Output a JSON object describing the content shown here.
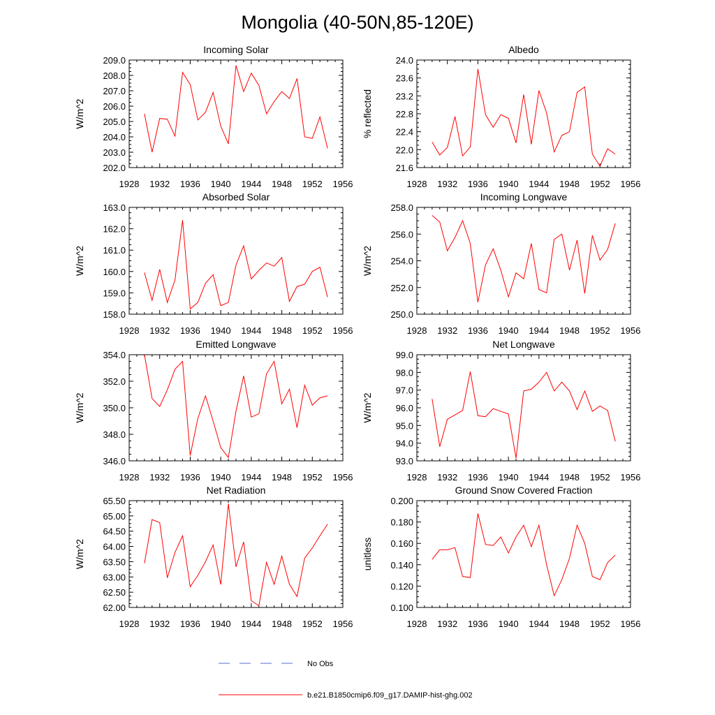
{
  "figure_title": "Mongolia (40-50N,85-120E)",
  "colors": {
    "model": "#ff0000",
    "obs": "#5a6fd0",
    "axis": "#000000"
  },
  "legend": {
    "obs_label": "No Obs",
    "model_label": "b.e21.B1850cmip6.f09_g17.DAMIP-hist-ghg.002"
  },
  "chart_data": [
    {
      "type": "line",
      "title": "Incoming Solar",
      "xlabel": "",
      "ylabel": "W/m^2",
      "xlim": [
        1928,
        1956
      ],
      "ylim": [
        202.0,
        209.0
      ],
      "xticks": [
        "1928",
        "1932",
        "1936",
        "1940",
        "1944",
        "1948",
        "1952",
        "1956"
      ],
      "yticks": [
        "202.0",
        "203.0",
        "204.0",
        "205.0",
        "206.0",
        "207.0",
        "208.0",
        "209.0"
      ],
      "series": [
        {
          "name": "b.e21.B1850cmip6.f09_g17.DAMIP-hist-ghg.002",
          "x": [
            1930,
            1931,
            1932,
            1933,
            1934,
            1935,
            1936,
            1937,
            1938,
            1939,
            1940,
            1941,
            1942,
            1943,
            1944,
            1945,
            1946,
            1947,
            1948,
            1949,
            1950,
            1951,
            1952,
            1953,
            1954
          ],
          "y": [
            205.5,
            203.0,
            205.2,
            205.15,
            204.05,
            208.2,
            207.4,
            205.1,
            205.6,
            206.9,
            204.7,
            203.55,
            208.65,
            206.95,
            208.15,
            207.35,
            205.5,
            206.3,
            206.95,
            206.5,
            207.8,
            204.0,
            203.9,
            205.3,
            203.25
          ]
        }
      ]
    },
    {
      "type": "line",
      "title": "Albedo",
      "xlabel": "",
      "ylabel": "% reflected",
      "xlim": [
        1928,
        1956
      ],
      "ylim": [
        21.6,
        24.0
      ],
      "xticks": [
        "1928",
        "1932",
        "1936",
        "1940",
        "1944",
        "1948",
        "1952",
        "1956"
      ],
      "yticks": [
        "21.6",
        "22.0",
        "22.4",
        "22.8",
        "23.2",
        "23.6",
        "24.0"
      ],
      "series": [
        {
          "name": "b.e21.B1850cmip6.f09_g17.DAMIP-hist-ghg.002",
          "x": [
            1930,
            1931,
            1932,
            1933,
            1934,
            1935,
            1936,
            1937,
            1938,
            1939,
            1940,
            1941,
            1942,
            1943,
            1944,
            1945,
            1946,
            1947,
            1948,
            1949,
            1950,
            1951,
            1952,
            1953,
            1954
          ],
          "y": [
            22.17,
            21.88,
            22.05,
            22.74,
            21.86,
            22.06,
            23.8,
            22.78,
            22.5,
            22.78,
            22.7,
            22.15,
            23.23,
            22.12,
            23.32,
            22.82,
            21.95,
            22.32,
            22.4,
            23.28,
            23.4,
            21.9,
            21.63,
            22.02,
            21.9
          ]
        }
      ]
    },
    {
      "type": "line",
      "title": "Absorbed Solar",
      "xlabel": "",
      "ylabel": "W/m^2",
      "xlim": [
        1928,
        1956
      ],
      "ylim": [
        158.0,
        163.0
      ],
      "xticks": [
        "1928",
        "1932",
        "1936",
        "1940",
        "1944",
        "1948",
        "1952",
        "1956"
      ],
      "yticks": [
        "158.0",
        "159.0",
        "160.0",
        "161.0",
        "162.0",
        "163.0"
      ],
      "series": [
        {
          "name": "b.e21.B1850cmip6.f09_g17.DAMIP-hist-ghg.002",
          "x": [
            1930,
            1931,
            1932,
            1933,
            1934,
            1935,
            1936,
            1937,
            1938,
            1939,
            1940,
            1941,
            1942,
            1943,
            1944,
            1945,
            1946,
            1947,
            1948,
            1949,
            1950,
            1951,
            1952,
            1953,
            1954
          ],
          "y": [
            159.95,
            158.65,
            160.1,
            158.55,
            159.6,
            162.4,
            158.25,
            158.55,
            159.45,
            159.85,
            158.4,
            158.55,
            160.3,
            161.2,
            159.65,
            160.05,
            160.4,
            160.25,
            160.65,
            158.6,
            159.3,
            159.4,
            160.0,
            160.2,
            158.8
          ]
        }
      ]
    },
    {
      "type": "line",
      "title": "Incoming Longwave",
      "xlabel": "",
      "ylabel": "W/m^2",
      "xlim": [
        1928,
        1956
      ],
      "ylim": [
        250.0,
        258.0
      ],
      "xticks": [
        "1928",
        "1932",
        "1936",
        "1940",
        "1944",
        "1948",
        "1952",
        "1956"
      ],
      "yticks": [
        "250.0",
        "252.0",
        "254.0",
        "256.0",
        "258.0"
      ],
      "series": [
        {
          "name": "b.e21.B1850cmip6.f09_g17.DAMIP-hist-ghg.002",
          "x": [
            1930,
            1931,
            1932,
            1933,
            1934,
            1935,
            1936,
            1937,
            1938,
            1939,
            1940,
            1941,
            1942,
            1943,
            1944,
            1945,
            1946,
            1947,
            1948,
            1949,
            1950,
            1951,
            1952,
            1953,
            1954
          ],
          "y": [
            257.4,
            256.9,
            254.75,
            255.75,
            257.0,
            255.3,
            250.9,
            253.7,
            254.9,
            253.3,
            251.3,
            253.1,
            252.65,
            255.3,
            251.85,
            251.6,
            255.6,
            256.0,
            253.3,
            255.55,
            251.55,
            255.9,
            254.05,
            254.85,
            256.8
          ]
        }
      ]
    },
    {
      "type": "line",
      "title": "Emitted Longwave",
      "xlabel": "",
      "ylabel": "W/m^2",
      "xlim": [
        1928,
        1956
      ],
      "ylim": [
        346.0,
        354.0
      ],
      "xticks": [
        "1928",
        "1932",
        "1936",
        "1940",
        "1944",
        "1948",
        "1952",
        "1956"
      ],
      "yticks": [
        "346.0",
        "348.0",
        "350.0",
        "352.0",
        "354.0"
      ],
      "series": [
        {
          "name": "b.e21.B1850cmip6.f09_g17.DAMIP-hist-ghg.002",
          "x": [
            1930,
            1931,
            1932,
            1933,
            1934,
            1935,
            1936,
            1937,
            1938,
            1939,
            1940,
            1941,
            1942,
            1943,
            1944,
            1945,
            1946,
            1947,
            1948,
            1949,
            1950,
            1951,
            1952,
            1953,
            1954
          ],
          "y": [
            354.0,
            350.7,
            350.1,
            351.35,
            352.9,
            353.5,
            346.4,
            349.2,
            350.9,
            349.0,
            347.0,
            346.25,
            349.75,
            352.4,
            349.3,
            349.55,
            352.55,
            353.5,
            350.3,
            351.4,
            348.5,
            351.7,
            350.2,
            350.75,
            350.9
          ]
        }
      ]
    },
    {
      "type": "line",
      "title": "Net Longwave",
      "xlabel": "",
      "ylabel": "W/m^2",
      "xlim": [
        1928,
        1956
      ],
      "ylim": [
        93.0,
        99.0
      ],
      "xticks": [
        "1928",
        "1932",
        "1936",
        "1940",
        "1944",
        "1948",
        "1952",
        "1956"
      ],
      "yticks": [
        "93.0",
        "94.0",
        "95.0",
        "96.0",
        "97.0",
        "98.0",
        "99.0"
      ],
      "series": [
        {
          "name": "b.e21.B1850cmip6.f09_g17.DAMIP-hist-ghg.002",
          "x": [
            1930,
            1931,
            1932,
            1933,
            1934,
            1935,
            1936,
            1937,
            1938,
            1939,
            1940,
            1941,
            1942,
            1943,
            1944,
            1945,
            1946,
            1947,
            1948,
            1949,
            1950,
            1951,
            1952,
            1953,
            1954
          ],
          "y": [
            96.5,
            93.8,
            95.35,
            95.6,
            95.85,
            98.05,
            95.55,
            95.5,
            95.95,
            95.8,
            95.65,
            93.15,
            96.95,
            97.05,
            97.45,
            98.0,
            96.95,
            97.45,
            96.95,
            95.9,
            96.95,
            95.8,
            96.1,
            95.85,
            94.1
          ]
        }
      ]
    },
    {
      "type": "line",
      "title": "Net Radiation",
      "xlabel": "",
      "ylabel": "W/m^2",
      "xlim": [
        1928,
        1956
      ],
      "ylim": [
        62.0,
        65.5
      ],
      "xticks": [
        "1928",
        "1932",
        "1936",
        "1940",
        "1944",
        "1948",
        "1952",
        "1956"
      ],
      "yticks": [
        "62.00",
        "62.50",
        "63.00",
        "63.50",
        "64.00",
        "64.50",
        "65.00",
        "65.50"
      ],
      "series": [
        {
          "name": "b.e21.B1850cmip6.f09_g17.DAMIP-hist-ghg.002",
          "x": [
            1930,
            1931,
            1932,
            1933,
            1934,
            1935,
            1936,
            1937,
            1938,
            1939,
            1940,
            1941,
            1942,
            1943,
            1944,
            1945,
            1946,
            1947,
            1948,
            1949,
            1950,
            1951,
            1952,
            1953,
            1954
          ],
          "y": [
            63.45,
            64.88,
            64.78,
            62.97,
            63.8,
            64.35,
            62.68,
            63.05,
            63.5,
            64.05,
            62.75,
            65.4,
            63.33,
            64.15,
            62.22,
            62.06,
            63.48,
            62.76,
            63.68,
            62.76,
            62.36,
            63.62,
            63.95,
            64.35,
            64.73
          ]
        }
      ]
    },
    {
      "type": "line",
      "title": "Ground Snow Covered Fraction",
      "xlabel": "",
      "ylabel": "unitless",
      "xlim": [
        1928,
        1956
      ],
      "ylim": [
        0.1,
        0.2
      ],
      "xticks": [
        "1928",
        "1932",
        "1936",
        "1940",
        "1944",
        "1948",
        "1952",
        "1956"
      ],
      "yticks": [
        "0.100",
        "0.120",
        "0.140",
        "0.160",
        "0.180",
        "0.200"
      ],
      "series": [
        {
          "name": "b.e21.B1850cmip6.f09_g17.DAMIP-hist-ghg.002",
          "x": [
            1930,
            1931,
            1932,
            1933,
            1934,
            1935,
            1936,
            1937,
            1938,
            1939,
            1940,
            1941,
            1942,
            1943,
            1944,
            1945,
            1946,
            1947,
            1948,
            1949,
            1950,
            1951,
            1952,
            1953,
            1954
          ],
          "y": [
            0.145,
            0.154,
            0.154,
            0.156,
            0.129,
            0.128,
            0.188,
            0.159,
            0.158,
            0.166,
            0.151,
            0.166,
            0.177,
            0.157,
            0.177,
            0.14,
            0.111,
            0.126,
            0.146,
            0.177,
            0.16,
            0.129,
            0.126,
            0.142,
            0.149
          ]
        }
      ]
    }
  ]
}
